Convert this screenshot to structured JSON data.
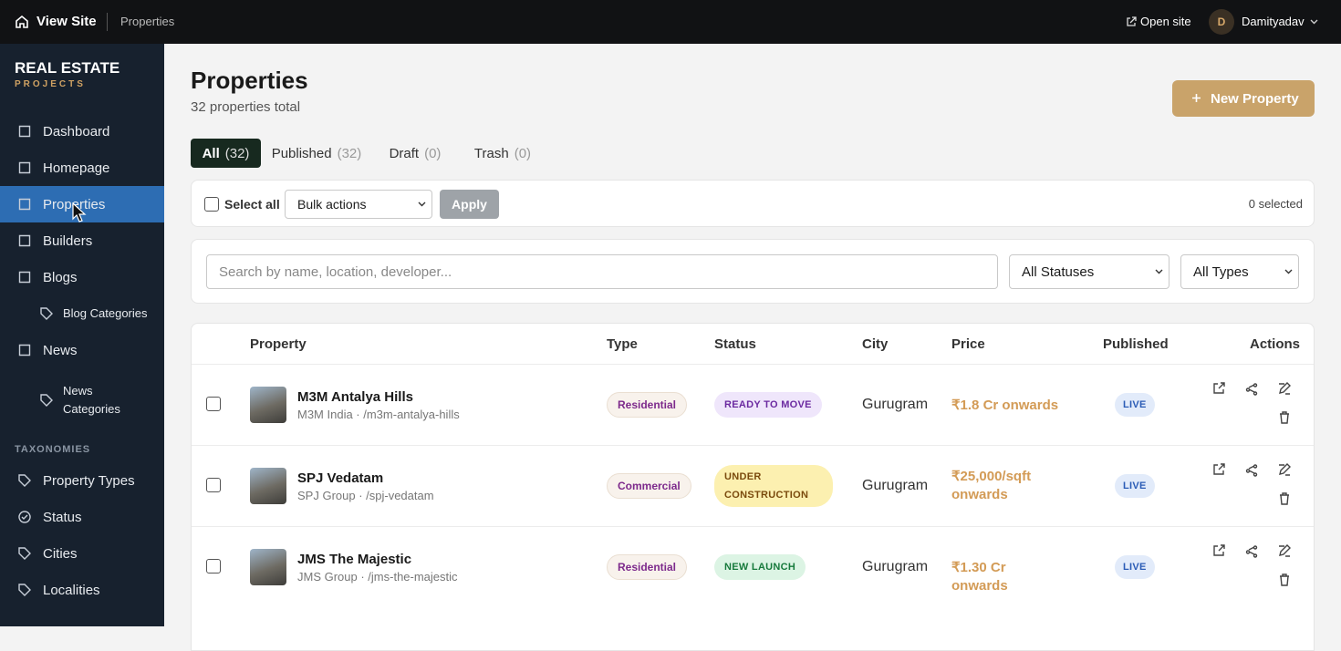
{
  "topbar": {
    "site": "View Site",
    "crumb": "Properties",
    "open_site": "Open site",
    "user_initial": "D",
    "user": "Damityadav"
  },
  "sidebar": {
    "brand": "REAL ESTATE",
    "brand_sub": "PROJECTS",
    "nav": [
      {
        "label": "Dashboard"
      },
      {
        "label": "Homepage"
      },
      {
        "label": "Properties"
      },
      {
        "label": "Builders"
      },
      {
        "label": "Blogs"
      },
      {
        "label": "Blog Categories"
      },
      {
        "label": "News"
      },
      {
        "label": "News Categories"
      }
    ],
    "section": "TAXONOMIES",
    "taxonomies": [
      {
        "label": "Property Types"
      },
      {
        "label": "Status"
      },
      {
        "label": "Cities"
      },
      {
        "label": "Localities"
      }
    ]
  },
  "header": {
    "title": "Properties",
    "subtitle": "32 properties total",
    "new_button": "New Property"
  },
  "tabs": [
    {
      "label": "All",
      "count": "(32)"
    },
    {
      "label": "Published",
      "count": "(32)"
    },
    {
      "label": "Draft",
      "count": "(0)"
    },
    {
      "label": "Trash",
      "count": "(0)"
    }
  ],
  "bulk": {
    "select_all": "Select all",
    "bulk_actions": "Bulk actions",
    "apply": "Apply",
    "selected": "0 selected"
  },
  "filters": {
    "search_placeholder": "Search by name, location, developer...",
    "status": "All Statuses",
    "type": "All Types"
  },
  "table": {
    "columns": [
      "Property",
      "Type",
      "Status",
      "City",
      "Price",
      "Published",
      "Actions"
    ],
    "rows": [
      {
        "name": "M3M Antalya Hills",
        "subtitle": "M3M India · /m3m-antalya-hills",
        "type": "Residential",
        "status": "READY TO MOVE",
        "city": "Gurugram",
        "price": "₹1.8 Cr onwards",
        "published": "LIVE"
      },
      {
        "name": "SPJ Vedatam",
        "subtitle": "SPJ Group · /spj-vedatam",
        "type": "Commercial",
        "status": "UNDER CONSTRUCTION",
        "city": "Gurugram",
        "price": "₹25,000/sqft onwards",
        "published": "LIVE"
      },
      {
        "name": "JMS The Majestic",
        "subtitle": "JMS Group · /jms-the-majestic",
        "type": "Residential",
        "status": "NEW LAUNCH",
        "city": "Gurugram",
        "price": "₹1.30 Cr onwards",
        "published": "LIVE"
      }
    ]
  }
}
